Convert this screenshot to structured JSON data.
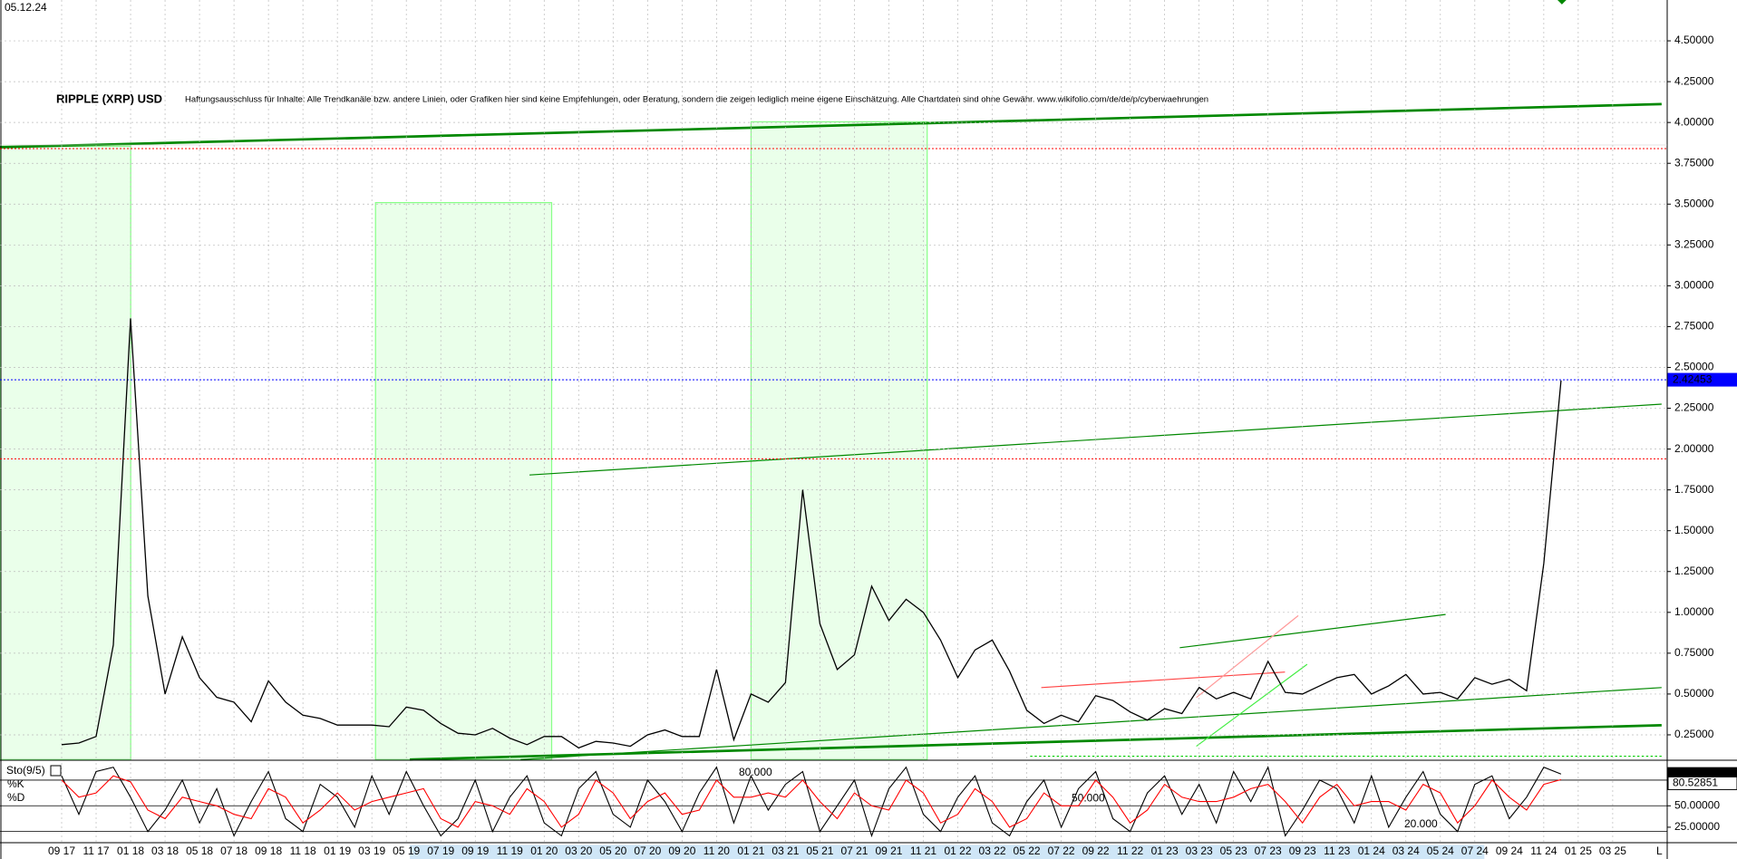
{
  "date_label": "05.12.24",
  "corner_label": "L",
  "chart_data": [
    {
      "type": "line",
      "title": "RIPPLE (XRP) USD",
      "subtitle": "Haftungsausschluss für Inhalte: Alle Trendkanäle bzw. andere Linien, oder Grafiken hier sind keine Empfehlungen, oder Beratung, sondern die zeigen lediglich meine eigene Einschätzung. Alle Chartdaten sind ohne Gewähr. www.wikifolio.com/de/de/p/cyberwaehrungen",
      "categories": [
        "09 17",
        null,
        "11 17",
        null,
        "01 18",
        null,
        "03 18",
        null,
        "05 18",
        null,
        "07 18",
        null,
        "09 18",
        null,
        "11 18",
        null,
        "01 19",
        null,
        "03 19",
        null,
        "05 19",
        null,
        "07 19",
        null,
        "09 19",
        null,
        "11 19",
        null,
        "01 20",
        null,
        "03 20",
        null,
        "05 20",
        null,
        "07 20",
        null,
        "09 20",
        null,
        "11 20",
        null,
        "01 21",
        null,
        "03 21",
        null,
        "05 21",
        null,
        "07 21",
        null,
        "09 21",
        null,
        "11 21",
        null,
        "01 22",
        null,
        "03 22",
        null,
        "05 22",
        null,
        "07 22",
        null,
        "09 22",
        null,
        "11 22",
        null,
        "01 23",
        null,
        "03 23",
        null,
        "05 23",
        null,
        "07 23",
        null,
        "09 23",
        null,
        "11 23",
        null,
        "01 24",
        null,
        "03 24",
        null,
        "05 24",
        null,
        "07 24",
        null,
        "09 24",
        null,
        "11 24",
        null,
        "01 25",
        null,
        "03 25"
      ],
      "series": [
        {
          "color": "#000000",
          "values": [
            0.19,
            0.2,
            0.24,
            0.8,
            2.8,
            1.1,
            0.5,
            0.85,
            0.6,
            0.48,
            0.45,
            0.33,
            0.58,
            0.45,
            0.37,
            0.35,
            0.31,
            0.31,
            0.31,
            0.3,
            0.42,
            0.4,
            0.32,
            0.26,
            0.25,
            0.29,
            0.23,
            0.19,
            0.24,
            0.24,
            0.17,
            0.21,
            0.2,
            0.18,
            0.25,
            0.28,
            0.24,
            0.24,
            0.65,
            0.22,
            0.5,
            0.45,
            0.57,
            1.75,
            0.93,
            0.65,
            0.74,
            1.16,
            0.95,
            1.08,
            1.0,
            0.83,
            0.6,
            0.77,
            0.83,
            0.64,
            0.4,
            0.32,
            0.37,
            0.33,
            0.49,
            0.46,
            0.39,
            0.34,
            0.41,
            0.38,
            0.54,
            0.47,
            0.51,
            0.47,
            0.7,
            0.51,
            0.5,
            0.55,
            0.6,
            0.62,
            0.5,
            0.55,
            0.62,
            0.5,
            0.51,
            0.47,
            0.6,
            0.56,
            0.59,
            0.52,
            1.3,
            2.42,
            null,
            null,
            null
          ]
        }
      ],
      "ylim": [
        0.1,
        4.75
      ],
      "yticks": [
        {
          "value": 0.25,
          "label": "0.25000"
        },
        {
          "value": 0.5,
          "label": "0.50000"
        },
        {
          "value": 0.75,
          "label": "0.75000"
        },
        {
          "value": 1.0,
          "label": "1.00000"
        },
        {
          "value": 1.25,
          "label": "1.25000"
        },
        {
          "value": 1.5,
          "label": "1.50000"
        },
        {
          "value": 1.75,
          "label": "1.75000"
        },
        {
          "value": 2.0,
          "label": "2.00000"
        },
        {
          "value": 2.25,
          "label": "2.25000"
        },
        {
          "value": 2.5,
          "label": "2.50000"
        },
        {
          "value": 2.75,
          "label": "2.75000"
        },
        {
          "value": 3.0,
          "label": "3.00000"
        },
        {
          "value": 3.25,
          "label": "3.25000"
        },
        {
          "value": 3.5,
          "label": "3.50000"
        },
        {
          "value": 3.75,
          "label": "3.75000"
        },
        {
          "value": 4.0,
          "label": "4.00000"
        },
        {
          "value": 4.25,
          "label": "4.25000"
        },
        {
          "value": 4.5,
          "label": "4.50000"
        }
      ],
      "grid": true,
      "hlines": [
        {
          "value": 3.84,
          "color": "#ff0000"
        },
        {
          "value": 2.42453,
          "color": "#0000ff"
        },
        {
          "value": 1.94,
          "color": "#ff0000"
        }
      ]
    },
    {
      "type": "line",
      "title": "Sto(9/5)",
      "series": [
        {
          "name": "%K",
          "color": "#000000",
          "values": [
            85,
            40,
            90,
            95,
            60,
            20,
            45,
            80,
            30,
            70,
            15,
            55,
            90,
            35,
            20,
            75,
            60,
            25,
            85,
            40,
            90,
            50,
            15,
            35,
            80,
            20,
            60,
            85,
            30,
            15,
            70,
            90,
            40,
            25,
            80,
            55,
            20,
            65,
            95,
            30,
            85,
            45,
            75,
            90,
            20,
            50,
            80,
            15,
            70,
            95,
            40,
            20,
            60,
            85,
            30,
            15,
            55,
            80,
            25,
            70,
            90,
            35,
            20,
            65,
            85,
            40,
            75,
            30,
            90,
            55,
            95,
            15,
            45,
            80,
            70,
            30,
            85,
            25,
            60,
            90,
            40,
            20,
            75,
            85,
            35,
            60,
            95,
            87.13829,
            null,
            null,
            null
          ]
        },
        {
          "name": "%D",
          "color": "#ff0000",
          "values": [
            80,
            60,
            65,
            85,
            78,
            45,
            35,
            60,
            55,
            50,
            40,
            35,
            70,
            60,
            30,
            45,
            65,
            45,
            55,
            60,
            65,
            70,
            35,
            25,
            55,
            50,
            40,
            70,
            55,
            25,
            40,
            80,
            65,
            35,
            55,
            65,
            40,
            45,
            80,
            60,
            60,
            65,
            60,
            80,
            55,
            35,
            65,
            50,
            45,
            80,
            65,
            30,
            40,
            70,
            55,
            25,
            35,
            65,
            50,
            50,
            80,
            60,
            30,
            45,
            75,
            60,
            55,
            55,
            60,
            70,
            75,
            55,
            30,
            60,
            75,
            50,
            55,
            55,
            45,
            75,
            65,
            30,
            50,
            80,
            60,
            45,
            75,
            80.52851,
            null,
            null,
            null
          ]
        }
      ],
      "ylim": [
        8,
        100
      ],
      "yticks": [
        {
          "value": 25,
          "label": "25.00000"
        },
        {
          "value": 50,
          "label": "50.00000"
        }
      ],
      "levels": [
        {
          "value": 80,
          "label": "80.000"
        },
        {
          "value": 50,
          "label": "50.000"
        },
        {
          "value": 20,
          "label": "20.000"
        }
      ]
    }
  ]
}
